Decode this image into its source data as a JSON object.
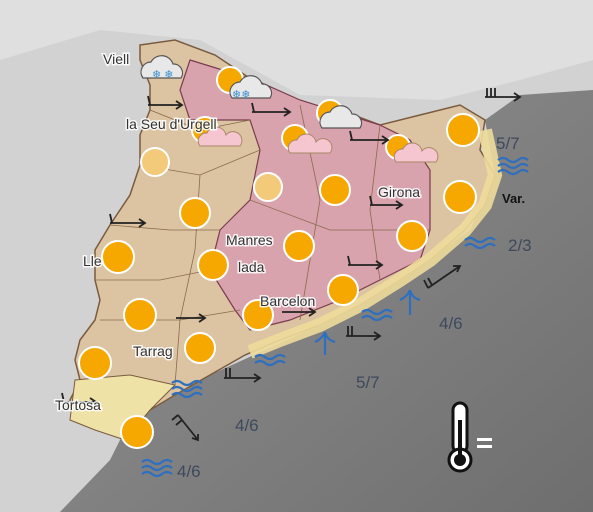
{
  "cities": [
    "Viell",
    "la Seu d'Urgell",
    "Girona",
    "Manres",
    "Lle",
    "lada",
    "Barcelon",
    "Tarrag",
    "Tortosa"
  ],
  "sea_states": [
    "5/7",
    "2/3",
    "4/6",
    "5/7",
    "4/6",
    "4/6"
  ],
  "wind_label": "Var."
}
